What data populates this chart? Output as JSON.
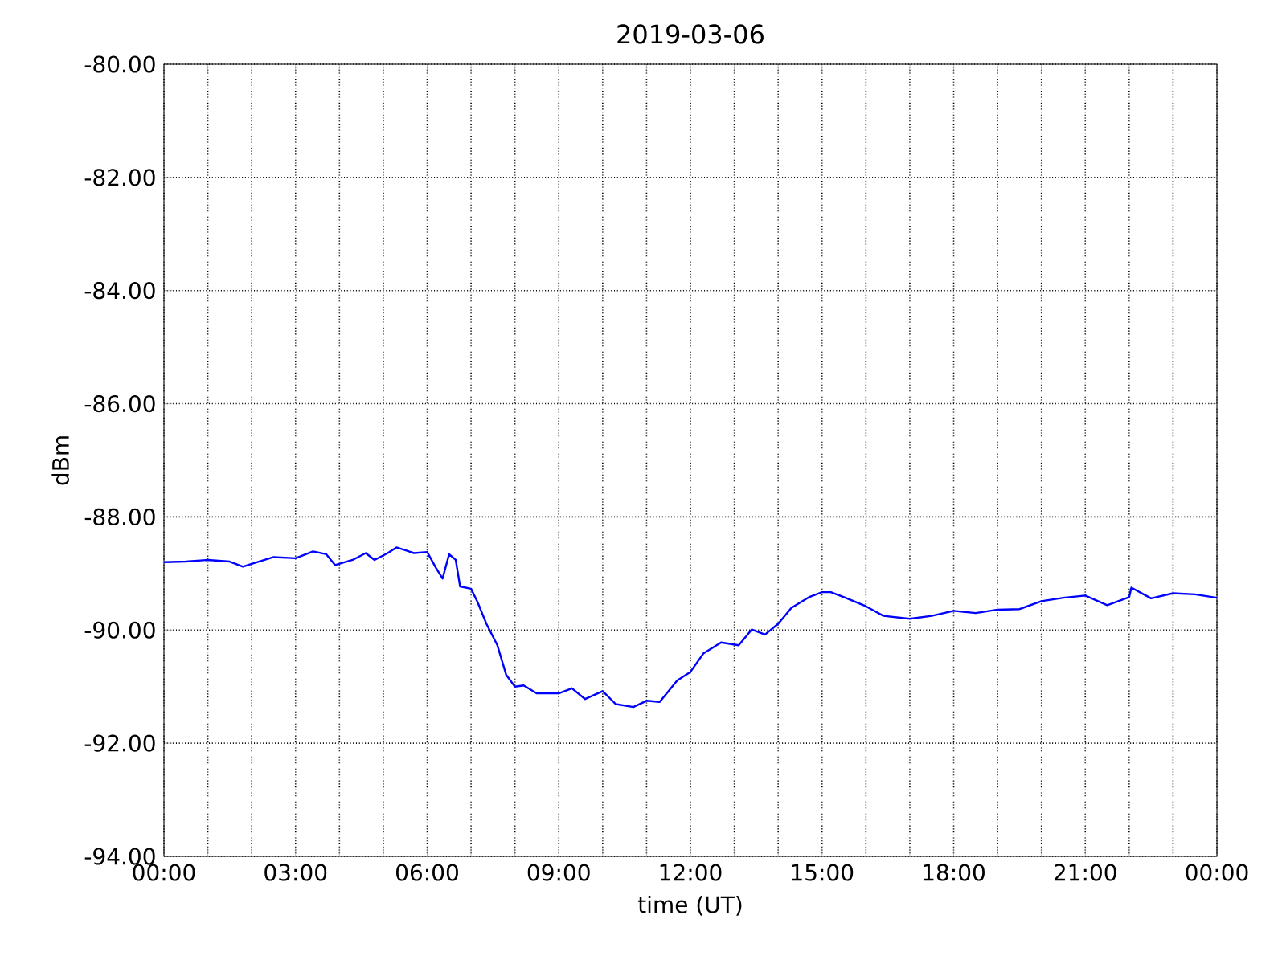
{
  "chart_data": {
    "type": "line",
    "title": "2019-03-06",
    "xlabel": "time (UT)",
    "ylabel": "dBm",
    "xlim": [
      0,
      24
    ],
    "ylim": [
      -94,
      -80
    ],
    "grid": true,
    "xticks": [
      {
        "value": 0,
        "label": "00:00"
      },
      {
        "value": 1,
        "label": null
      },
      {
        "value": 2,
        "label": null
      },
      {
        "value": 3,
        "label": "03:00"
      },
      {
        "value": 4,
        "label": null
      },
      {
        "value": 5,
        "label": null
      },
      {
        "value": 6,
        "label": "06:00"
      },
      {
        "value": 7,
        "label": null
      },
      {
        "value": 8,
        "label": null
      },
      {
        "value": 9,
        "label": "09:00"
      },
      {
        "value": 10,
        "label": null
      },
      {
        "value": 11,
        "label": null
      },
      {
        "value": 12,
        "label": "12:00"
      },
      {
        "value": 13,
        "label": null
      },
      {
        "value": 14,
        "label": null
      },
      {
        "value": 15,
        "label": "15:00"
      },
      {
        "value": 16,
        "label": null
      },
      {
        "value": 17,
        "label": null
      },
      {
        "value": 18,
        "label": "18:00"
      },
      {
        "value": 19,
        "label": null
      },
      {
        "value": 20,
        "label": null
      },
      {
        "value": 21,
        "label": "21:00"
      },
      {
        "value": 22,
        "label": null
      },
      {
        "value": 23,
        "label": null
      },
      {
        "value": 24,
        "label": "00:00"
      }
    ],
    "yticks": [
      {
        "value": -94,
        "label": "-94.00"
      },
      {
        "value": -92,
        "label": "-92.00"
      },
      {
        "value": -90,
        "label": "-90.00"
      },
      {
        "value": -88,
        "label": "-88.00"
      },
      {
        "value": -86,
        "label": "-86.00"
      },
      {
        "value": -84,
        "label": "-84.00"
      },
      {
        "value": -82,
        "label": "-82.00"
      },
      {
        "value": -80,
        "label": "-80.00"
      }
    ],
    "series": [
      {
        "color": "#0000ff",
        "x": [
          0,
          0.5,
          1,
          1.5,
          1.8,
          2,
          2.5,
          3,
          3.4,
          3.7,
          3.9,
          4.3,
          4.6,
          4.8,
          5.1,
          5.3,
          5.7,
          6,
          6.2,
          6.35,
          6.5,
          6.65,
          6.75,
          7,
          7.15,
          7.35,
          7.6,
          7.8,
          8,
          8.2,
          8.5,
          9,
          9.3,
          9.6,
          10,
          10.3,
          10.7,
          11,
          11.3,
          11.7,
          12,
          12.3,
          12.7,
          13.1,
          13.4,
          13.7,
          14,
          14.3,
          14.7,
          15,
          15.2,
          15.5,
          16,
          16.4,
          17,
          17.5,
          18,
          18.5,
          19,
          19.5,
          20,
          20.5,
          21,
          21.5,
          22,
          22.05,
          22.5,
          23,
          23.5,
          24
        ],
        "values": [
          -88.8,
          -88.79,
          -88.76,
          -88.79,
          -88.88,
          -88.83,
          -88.71,
          -88.73,
          -88.61,
          -88.66,
          -88.85,
          -88.76,
          -88.64,
          -88.76,
          -88.64,
          -88.54,
          -88.64,
          -88.62,
          -88.9,
          -89.09,
          -88.66,
          -88.76,
          -89.23,
          -89.27,
          -89.51,
          -89.89,
          -90.27,
          -90.79,
          -91.0,
          -90.98,
          -91.12,
          -91.12,
          -91.03,
          -91.22,
          -91.08,
          -91.31,
          -91.36,
          -91.25,
          -91.27,
          -90.89,
          -90.74,
          -90.41,
          -90.22,
          -90.27,
          -89.99,
          -90.08,
          -89.89,
          -89.61,
          -89.42,
          -89.33,
          -89.33,
          -89.42,
          -89.58,
          -89.75,
          -89.8,
          -89.75,
          -89.66,
          -89.7,
          -89.64,
          -89.63,
          -89.49,
          -89.43,
          -89.39,
          -89.56,
          -89.42,
          -89.25,
          -89.44,
          -89.35,
          -89.37,
          -89.43
        ]
      }
    ]
  }
}
